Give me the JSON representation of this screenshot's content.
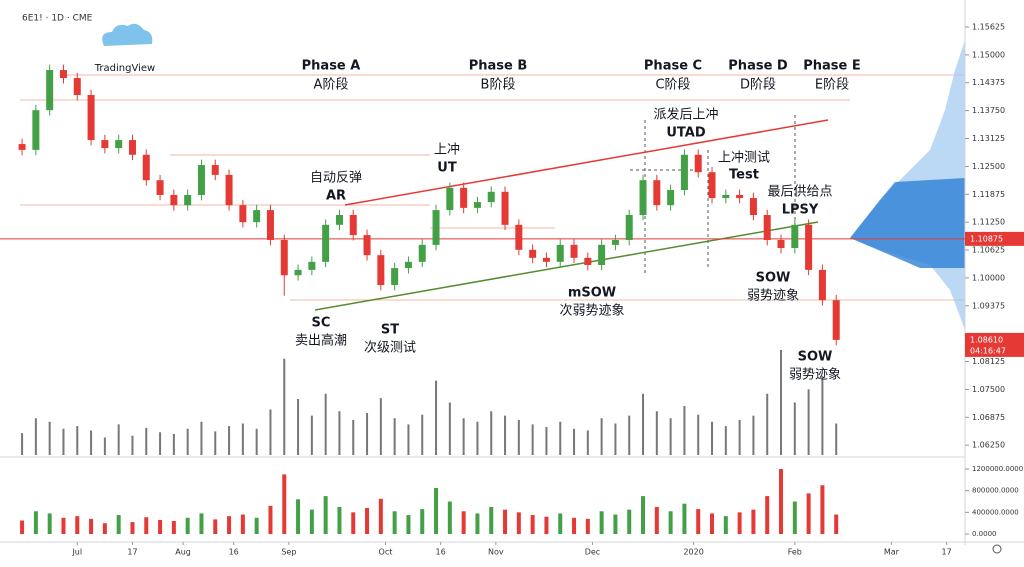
{
  "chart_data": {
    "type": "candlestick",
    "symbol": "6E1! · 1D · CME",
    "logo": "TradingView",
    "x": [
      0,
      3,
      6,
      9,
      12,
      15,
      18,
      21,
      24,
      27,
      30,
      33,
      36,
      39,
      42,
      45,
      48,
      51,
      54,
      57,
      60,
      63,
      66,
      69,
      72,
      75,
      78,
      81,
      84,
      87,
      90,
      93,
      96,
      99,
      102,
      105,
      108,
      111,
      114,
      117,
      120,
      123,
      126,
      129,
      132,
      135,
      138,
      141,
      144,
      147,
      150,
      153,
      156,
      159,
      162,
      165,
      168,
      171,
      174,
      177
    ],
    "open": [
      1.13,
      1.1287,
      1.1376,
      1.1466,
      1.1448,
      1.141,
      1.1309,
      1.1291,
      1.1309,
      1.1276,
      1.1219,
      1.1186,
      1.1163,
      1.1186,
      1.1253,
      1.1231,
      1.1163,
      1.1125,
      1.1152,
      1.1085,
      1.1006,
      1.1018,
      1.1036,
      1.1119,
      1.1141,
      1.1096,
      1.1051,
      1.0984,
      1.1022,
      1.1036,
      1.1074,
      1.1152,
      1.1202,
      1.1157,
      1.117,
      1.1193,
      1.1119,
      1.1063,
      1.1045,
      1.1036,
      1.1074,
      1.1045,
      1.1029,
      1.1074,
      1.1085,
      1.1141,
      1.1219,
      1.1163,
      1.1197,
      1.1276,
      1.1237,
      1.1179,
      1.1186,
      1.1179,
      1.1141,
      1.1085,
      1.1067,
      1.1119,
      1.1018,
      1.095
    ],
    "high": [
      1.1312,
      1.1388,
      1.1478,
      1.1478,
      1.146,
      1.1422,
      1.1321,
      1.1321,
      1.1321,
      1.1288,
      1.1231,
      1.1198,
      1.1198,
      1.1265,
      1.1265,
      1.1243,
      1.1175,
      1.1164,
      1.1164,
      1.1097,
      1.103,
      1.1048,
      1.1131,
      1.1153,
      1.1153,
      1.1108,
      1.1063,
      1.1034,
      1.1048,
      1.1086,
      1.1164,
      1.1214,
      1.1214,
      1.1182,
      1.1205,
      1.1205,
      1.1131,
      1.1075,
      1.1057,
      1.1086,
      1.1086,
      1.1057,
      1.1086,
      1.1097,
      1.1153,
      1.1231,
      1.1231,
      1.1209,
      1.1288,
      1.1288,
      1.1249,
      1.1198,
      1.1198,
      1.1191,
      1.1153,
      1.1097,
      1.1131,
      1.1131,
      1.103,
      1.0962
    ],
    "low": [
      1.1275,
      1.1275,
      1.1364,
      1.1436,
      1.1398,
      1.1297,
      1.1279,
      1.1279,
      1.1264,
      1.1207,
      1.1174,
      1.1151,
      1.1151,
      1.1174,
      1.1219,
      1.1151,
      1.1113,
      1.1113,
      1.1073,
      1.096,
      1.0994,
      1.1006,
      1.1024,
      1.1107,
      1.1084,
      1.1039,
      1.0972,
      1.0972,
      1.101,
      1.1024,
      1.1062,
      1.114,
      1.1145,
      1.1145,
      1.1158,
      1.1107,
      1.1051,
      1.1033,
      1.1024,
      1.1024,
      1.1033,
      1.1017,
      1.1017,
      1.1062,
      1.1073,
      1.1129,
      1.1151,
      1.1151,
      1.1185,
      1.1225,
      1.1167,
      1.1167,
      1.1167,
      1.1129,
      1.1073,
      1.1055,
      1.1055,
      1.1006,
      1.0938,
      1.0849
    ],
    "close": [
      1.1287,
      1.1376,
      1.1466,
      1.1448,
      1.141,
      1.1309,
      1.1291,
      1.1309,
      1.1276,
      1.1219,
      1.1186,
      1.1163,
      1.1186,
      1.1253,
      1.1231,
      1.1163,
      1.1125,
      1.1152,
      1.1085,
      1.1006,
      1.1018,
      1.1036,
      1.1119,
      1.1141,
      1.1096,
      1.1051,
      1.0984,
      1.1022,
      1.1036,
      1.1074,
      1.1152,
      1.1202,
      1.1157,
      1.117,
      1.1193,
      1.1119,
      1.1063,
      1.1045,
      1.1036,
      1.1074,
      1.1045,
      1.1029,
      1.1074,
      1.1085,
      1.1141,
      1.1219,
      1.1163,
      1.1197,
      1.1276,
      1.1237,
      1.1179,
      1.1186,
      1.1179,
      1.1141,
      1.1085,
      1.1067,
      1.1119,
      1.1018,
      1.095,
      1.0861
    ],
    "volume": [
      250000,
      420000,
      380000,
      300000,
      330000,
      280000,
      200000,
      350000,
      220000,
      310000,
      260000,
      240000,
      300000,
      380000,
      270000,
      330000,
      360000,
      300000,
      520000,
      1100000,
      640000,
      450000,
      700000,
      500000,
      400000,
      480000,
      650000,
      420000,
      350000,
      460000,
      850000,
      600000,
      420000,
      380000,
      500000,
      450000,
      400000,
      350000,
      320000,
      380000,
      300000,
      280000,
      420000,
      360000,
      450000,
      700000,
      500000,
      420000,
      560000,
      460000,
      380000,
      330000,
      400000,
      450000,
      700000,
      1200000,
      600000,
      750000,
      900000,
      360000
    ],
    "up_color": "#43a047",
    "down_color": "#e53935",
    "xlim": [
      -4.8,
      205
    ],
    "xticks": [
      {
        "value": 12,
        "label": "Jul"
      },
      {
        "value": 24,
        "label": "17"
      },
      {
        "value": 35,
        "label": "Aug"
      },
      {
        "value": 46,
        "label": "16"
      },
      {
        "value": 58,
        "label": "Sep"
      },
      {
        "value": 79,
        "label": "Oct"
      },
      {
        "value": 91,
        "label": "16"
      },
      {
        "value": 103,
        "label": "Nov"
      },
      {
        "value": 124,
        "label": "Dec"
      },
      {
        "value": 146,
        "label": "2020"
      },
      {
        "value": 168,
        "label": "Feb"
      },
      {
        "value": 189,
        "label": "Mar"
      },
      {
        "value": 201,
        "label": "17"
      }
    ],
    "ylim": [
      1.0603,
      1.1623
    ],
    "yticks": [
      1.15625,
      {
        "value": 1.15,
        "label": "1.15000"
      },
      1.14375,
      {
        "value": 1.1375,
        "label": "1.13750"
      },
      1.13125,
      {
        "value": 1.125,
        "label": "1.12500"
      },
      1.11875,
      {
        "value": 1.1125,
        "label": "1.11250"
      },
      1.10625,
      {
        "value": 1.1,
        "label": "1.10000"
      },
      1.09375,
      1.08125,
      {
        "value": 1.075,
        "label": "1.07500"
      },
      1.06875,
      {
        "value": 1.0625,
        "label": "1.06250"
      }
    ],
    "volume_ylim": [
      -110000,
      1366000
    ],
    "volume_yticks": [
      {
        "value": 1200000,
        "label": "1200000.0000"
      },
      {
        "value": 800000,
        "label": "800000.0000"
      },
      {
        "value": 400000,
        "label": "400000.0000"
      },
      {
        "value": 0,
        "label": "0.0000"
      }
    ],
    "price_line": 1.10875,
    "last_price_label": "1.08610",
    "countdown": "04:16:47",
    "annotations": [
      "Phase A",
      "A阶段",
      "Phase B",
      "B阶段",
      "Phase C",
      "C阶段",
      "Phase D",
      "D阶段",
      "Phase E",
      "E阶段",
      "自动反弹",
      "AR",
      "上冲",
      "UT",
      "派发后上冲",
      "UTAD",
      "上冲测试",
      "Test",
      "最后供给点",
      "LPSY",
      "SOW",
      "弱势迹象",
      "mSOW",
      "次弱势迹象",
      "SC",
      "卖出高潮",
      "ST",
      "次级测试",
      "SOW",
      "弱势迹象"
    ]
  }
}
